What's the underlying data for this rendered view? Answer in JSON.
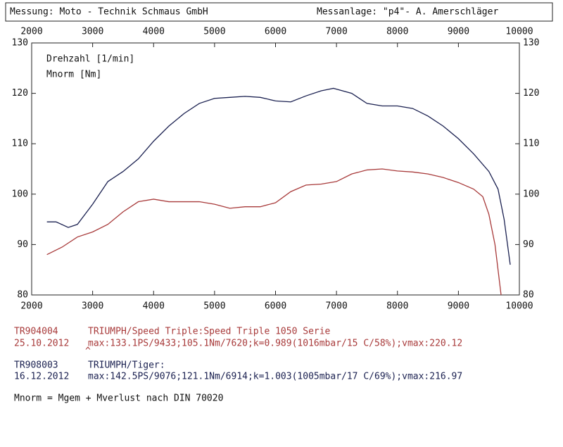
{
  "header": {
    "left": "Messung: Moto - Technik Schmaus GmbH",
    "right": "Messanlage: \"p4\"- A. Amerschläger"
  },
  "chart_data": {
    "type": "line",
    "x_label": "Drehzahl [1/min]",
    "y_label": "Mnorm [Nm]",
    "xlim": [
      2000,
      10000
    ],
    "xticks": [
      2000,
      3000,
      4000,
      5000,
      6000,
      7000,
      8000,
      9000,
      10000
    ],
    "ylim": [
      80,
      130
    ],
    "yticks": [
      80,
      90,
      100,
      110,
      120,
      130
    ],
    "grid": false,
    "series": [
      {
        "name": "TR904004",
        "color": "#a83a3a",
        "x": [
          2250,
          2500,
          2750,
          3000,
          3250,
          3500,
          3750,
          4000,
          4250,
          4500,
          4750,
          5000,
          5250,
          5500,
          5750,
          6000,
          6250,
          6500,
          6750,
          7000,
          7250,
          7500,
          7750,
          8000,
          8250,
          8500,
          8750,
          9000,
          9250,
          9400,
          9500,
          9600,
          9700
        ],
        "values": [
          88,
          89.5,
          91.5,
          92.5,
          94,
          96.5,
          98.5,
          99,
          98.5,
          98.5,
          98.5,
          98,
          97.2,
          97.5,
          97.5,
          98.3,
          100.5,
          101.8,
          102,
          102.5,
          104,
          104.8,
          105,
          104.6,
          104.4,
          104,
          103.3,
          102.3,
          101,
          99.5,
          96,
          90,
          80
        ]
      },
      {
        "name": "TR908003",
        "color": "#1a2050",
        "x": [
          2250,
          2400,
          2600,
          2750,
          3000,
          3250,
          3500,
          3750,
          4000,
          4250,
          4500,
          4750,
          5000,
          5250,
          5500,
          5750,
          6000,
          6250,
          6500,
          6750,
          6950,
          7250,
          7500,
          7750,
          8000,
          8250,
          8500,
          8750,
          9000,
          9250,
          9500,
          9650,
          9750,
          9850
        ],
        "values": [
          94.5,
          94.5,
          93.4,
          94,
          98,
          102.5,
          104.5,
          107,
          110.5,
          113.5,
          116,
          118,
          119,
          119.2,
          119.4,
          119.2,
          118.5,
          118.3,
          119.5,
          120.5,
          121,
          120,
          118,
          117.5,
          117.5,
          117,
          115.5,
          113.5,
          111,
          108,
          104.5,
          101,
          95,
          86
        ]
      }
    ]
  },
  "records": [
    {
      "model": "TRIUMPH/Speed Triple:Speed Triple 1050 Serie",
      "date": "25.10.2012",
      "info": "max:133.1PS/9433;105.1Nm/7620;k=0.989(1016mbar/15 C/58%);vmax:220.12",
      "mark": "^"
    },
    {
      "model": "TRIUMPH/Tiger:",
      "date": "16.12.2012",
      "info": "max:142.5PS/9076;121.1Nm/6914;k=1.003(1005mbar/17 C/69%);vmax:216.97"
    }
  ],
  "note": "Mnorm = Mgem + Mverlust nach DIN 70020"
}
